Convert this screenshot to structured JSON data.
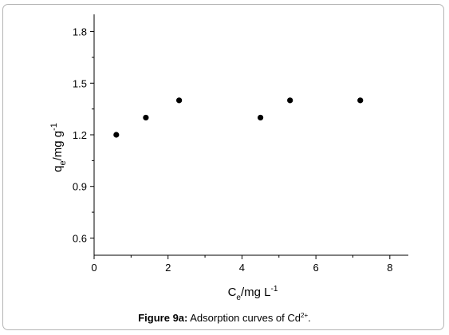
{
  "chart_data": {
    "type": "scatter",
    "x": [
      0.6,
      1.4,
      2.3,
      4.5,
      5.3,
      7.2
    ],
    "y": [
      1.2,
      1.3,
      1.4,
      1.3,
      1.4,
      1.4
    ],
    "xlim": [
      0,
      8.5
    ],
    "ylim": [
      0.5,
      1.9
    ],
    "xticks": [
      0,
      2,
      4,
      6,
      8
    ],
    "yticks": [
      0.6,
      0.9,
      1.2,
      1.5,
      1.8
    ],
    "xtick_labels": [
      "0",
      "2",
      "4",
      "6",
      "8"
    ],
    "ytick_labels": [
      "0.6",
      "0.9",
      "1.2",
      "1.5",
      "1.8"
    ],
    "xlabel": {
      "main": "C",
      "sub": "e",
      "unit": "/mg L",
      "sup": "-1"
    },
    "ylabel": {
      "main": "q",
      "sub": "e",
      "unit": "/mg g",
      "sup": "-1"
    },
    "marker_color": "#000000",
    "grid": false,
    "legend": "none"
  },
  "caption": {
    "label": "Figure 9a:",
    "text": "Adsorption curves of Cd",
    "sup": "2+",
    "end": "."
  }
}
